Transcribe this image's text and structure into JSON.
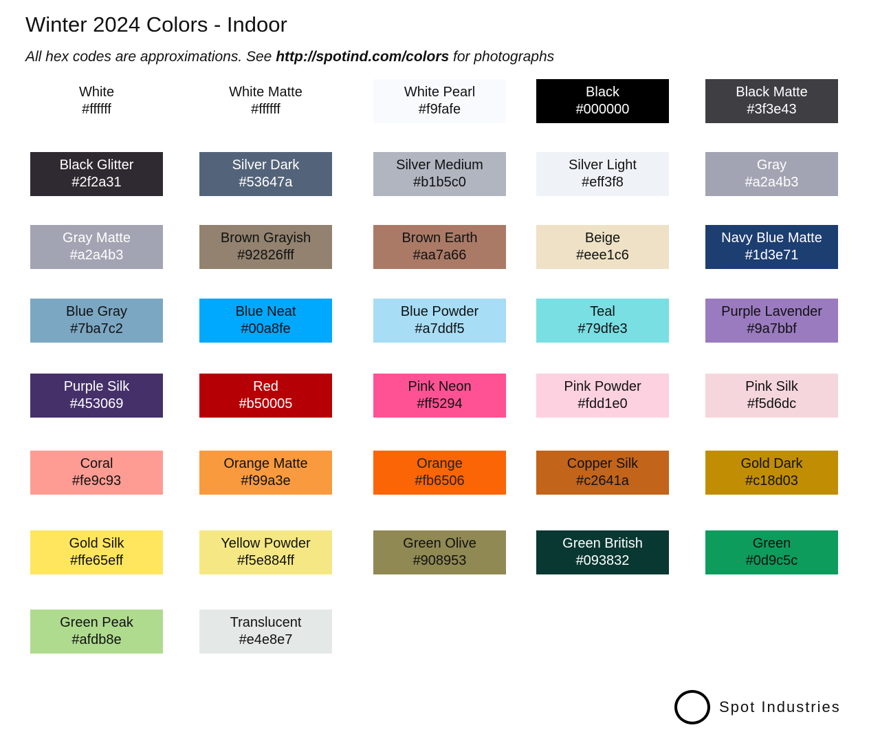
{
  "header": {
    "title": "Winter 2024 Colors - Indoor",
    "subtitle_pre": "All hex codes are approximations. See ",
    "subtitle_link": "http://spotind.com/colors",
    "subtitle_post": " for photographs"
  },
  "swatches": [
    {
      "name": "White",
      "hex": "#ffffff",
      "fill": "#ffffff",
      "text": "#111111"
    },
    {
      "name": "White Matte",
      "hex": "#ffffff",
      "fill": "#ffffff",
      "text": "#111111"
    },
    {
      "name": "White Pearl",
      "hex": "#f9fafe",
      "fill": "#f9fafe",
      "text": "#111111"
    },
    {
      "name": "Black",
      "hex": "#000000",
      "fill": "#000000",
      "text": "#ffffff"
    },
    {
      "name": "Black Matte",
      "hex": "#3f3e43",
      "fill": "#3f3e43",
      "text": "#ffffff"
    },
    {
      "name": "Black Glitter",
      "hex": "#2f2a31",
      "fill": "#2f2a31",
      "text": "#ffffff"
    },
    {
      "name": "Silver Dark",
      "hex": "#53647a",
      "fill": "#53647a",
      "text": "#ffffff"
    },
    {
      "name": "Silver Medium",
      "hex": "#b1b5c0",
      "fill": "#b1b5c0",
      "text": "#111111"
    },
    {
      "name": "Silver Light",
      "hex": "#eff3f8",
      "fill": "#eff3f8",
      "text": "#111111"
    },
    {
      "name": "Gray",
      "hex": "#a2a4b3",
      "fill": "#a2a4b3",
      "text": "#ffffff"
    },
    {
      "name": "Gray Matte",
      "hex": "#a2a4b3",
      "fill": "#a2a4b3",
      "text": "#ffffff"
    },
    {
      "name": "Brown Grayish",
      "hex": "#92826fff",
      "fill": "#92826f",
      "text": "#111111"
    },
    {
      "name": "Brown Earth",
      "hex": "#aa7a66",
      "fill": "#aa7a66",
      "text": "#111111"
    },
    {
      "name": "Beige",
      "hex": "#eee1c6",
      "fill": "#eee1c6",
      "text": "#111111"
    },
    {
      "name": "Navy Blue Matte",
      "hex": "#1d3e71",
      "fill": "#1d3e71",
      "text": "#ffffff"
    },
    {
      "name": "Blue Gray",
      "hex": "#7ba7c2",
      "fill": "#7ba7c2",
      "text": "#111111"
    },
    {
      "name": "Blue Neat",
      "hex": "#00a8fe",
      "fill": "#00a8fe",
      "text": "#111111"
    },
    {
      "name": "Blue Powder",
      "hex": "#a7ddf5",
      "fill": "#a7ddf5",
      "text": "#111111"
    },
    {
      "name": "Teal",
      "hex": "#79dfe3",
      "fill": "#79dfe3",
      "text": "#111111"
    },
    {
      "name": "Purple Lavender",
      "hex": "#9a7bbf",
      "fill": "#9a7bbf",
      "text": "#111111"
    },
    {
      "name": "Purple Silk",
      "hex": "#453069",
      "fill": "#453069",
      "text": "#ffffff"
    },
    {
      "name": "Red",
      "hex": "#b50005",
      "fill": "#b50005",
      "text": "#ffffff"
    },
    {
      "name": "Pink Neon",
      "hex": "#ff5294",
      "fill": "#ff5294",
      "text": "#111111"
    },
    {
      "name": "Pink Powder",
      "hex": "#fdd1e0",
      "fill": "#fdd1e0",
      "text": "#111111"
    },
    {
      "name": "Pink Silk",
      "hex": "#f5d6dc",
      "fill": "#f5d6dc",
      "text": "#111111"
    },
    {
      "name": "Coral",
      "hex": "#fe9c93",
      "fill": "#fe9c93",
      "text": "#111111"
    },
    {
      "name": "Orange Matte",
      "hex": "#f99a3e",
      "fill": "#f99a3e",
      "text": "#111111"
    },
    {
      "name": "Orange",
      "hex": "#fb6506",
      "fill": "#fb6506",
      "text": "#222222"
    },
    {
      "name": "Copper Silk",
      "hex": "#c2641a",
      "fill": "#c2641a",
      "text": "#111111"
    },
    {
      "name": "Gold Dark",
      "hex": "#c18d03",
      "fill": "#c18d03",
      "text": "#111111"
    },
    {
      "name": "Gold Silk",
      "hex": "#ffe65eff",
      "fill": "#ffe65e",
      "text": "#111111"
    },
    {
      "name": "Yellow Powder",
      "hex": "#f5e884ff",
      "fill": "#f5e884",
      "text": "#111111"
    },
    {
      "name": "Green Olive",
      "hex": "#908953",
      "fill": "#908953",
      "text": "#111111"
    },
    {
      "name": "Green British",
      "hex": "#093832",
      "fill": "#093832",
      "text": "#ffffff"
    },
    {
      "name": "Green",
      "hex": "#0d9c5c",
      "fill": "#0d9c5c",
      "text": "#111111"
    },
    {
      "name": "Green Peak",
      "hex": "#afdb8e",
      "fill": "#afdb8e",
      "text": "#111111"
    },
    {
      "name": "Translucent",
      "hex": "#e4e8e7",
      "fill": "#e4e8e7",
      "text": "#111111"
    }
  ],
  "logo": {
    "text": "Spot Industries"
  }
}
